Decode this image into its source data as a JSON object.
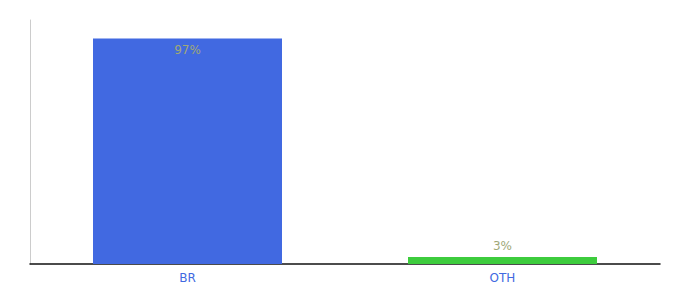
{
  "chart_data": {
    "type": "bar",
    "categories": [
      "BR",
      "OTH"
    ],
    "values": [
      97,
      3
    ],
    "value_labels": [
      "97%",
      "3%"
    ],
    "colors": [
      "#4169e1",
      "#3dcc3d"
    ],
    "ylim": [
      0,
      105
    ],
    "data_labels": true,
    "tick_labels": "x",
    "grid": false
  }
}
